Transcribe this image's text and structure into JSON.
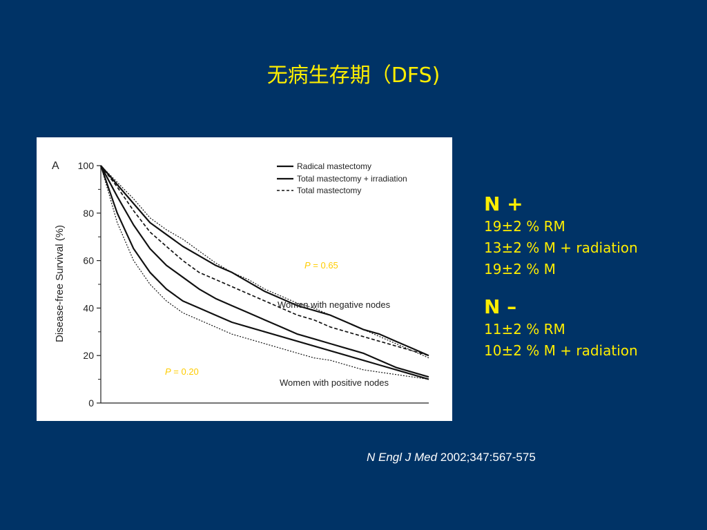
{
  "slide": {
    "title": "无病生存期（DFS)",
    "citation": {
      "journal": "N Engl J Med",
      "ref": " 2002;347:567-575"
    }
  },
  "stats": {
    "pos": {
      "head": "N +",
      "lines": [
        "19±2 % RM",
        "13±2 % M + radiation",
        "19±2 % M"
      ]
    },
    "neg": {
      "head": "N –",
      "lines": [
        "11±2 % RM",
        "10±2 % M + radiation"
      ]
    }
  },
  "chart_data": {
    "type": "line",
    "panel_label": "A",
    "ylabel": "Disease-free Survival (%)",
    "ylim": [
      0,
      100
    ],
    "yticks": [
      0,
      20,
      40,
      60,
      80,
      100
    ],
    "x": [
      0,
      1,
      2,
      3,
      4,
      5,
      6,
      7,
      8,
      9,
      10,
      11,
      12,
      13,
      14,
      15,
      16,
      17,
      18,
      19,
      20
    ],
    "legend": {
      "position": "top-right",
      "entries": [
        {
          "label": "Radical mastectomy",
          "style": "solid"
        },
        {
          "label": "Total mastectomy + irradiation",
          "style": "solid"
        },
        {
          "label": "Total mastectomy",
          "style": "dashed"
        }
      ]
    },
    "annotations": [
      {
        "text": "Women with negative nodes"
      },
      {
        "text": "Women with positive nodes"
      }
    ],
    "p_values": [
      {
        "label": "P",
        "value": " = 0.65",
        "color": "#FFCC00"
      },
      {
        "label": "P",
        "value": " = 0.20",
        "color": "#FFCC00"
      }
    ],
    "series": [
      {
        "group": "negative nodes",
        "style": "solid",
        "values": [
          100,
          92,
          84,
          76,
          71,
          66,
          62,
          58,
          55,
          51,
          47,
          44,
          41,
          39,
          37,
          34,
          31,
          29,
          26,
          23,
          20
        ]
      },
      {
        "group": "negative nodes",
        "style": "dotted",
        "values": [
          100,
          93,
          86,
          78,
          73,
          69,
          64,
          59,
          55,
          52,
          48,
          45,
          42,
          40,
          37,
          34,
          31,
          28,
          25,
          22,
          19
        ]
      },
      {
        "group": "negative nodes",
        "style": "dashed",
        "values": [
          100,
          91,
          81,
          72,
          66,
          60,
          55,
          52,
          49,
          46,
          43,
          40,
          37,
          35,
          32,
          30,
          28,
          26,
          24,
          22,
          20
        ]
      },
      {
        "group": "positive nodes",
        "style": "solid",
        "values": [
          100,
          87,
          75,
          65,
          58,
          53,
          48,
          44,
          41,
          38,
          35,
          32,
          29,
          27,
          25,
          23,
          21,
          18,
          15,
          13,
          11
        ]
      },
      {
        "group": "positive nodes",
        "style": "solid",
        "values": [
          100,
          80,
          65,
          55,
          48,
          43,
          40,
          37,
          34,
          32,
          30,
          28,
          26,
          24,
          22,
          20,
          18,
          16,
          14,
          12,
          10
        ]
      },
      {
        "group": "positive nodes",
        "style": "dotted",
        "values": [
          100,
          76,
          60,
          50,
          43,
          38,
          35,
          32,
          29,
          27,
          25,
          23,
          21,
          19,
          18,
          16,
          14,
          13,
          12,
          11,
          10
        ]
      }
    ]
  }
}
